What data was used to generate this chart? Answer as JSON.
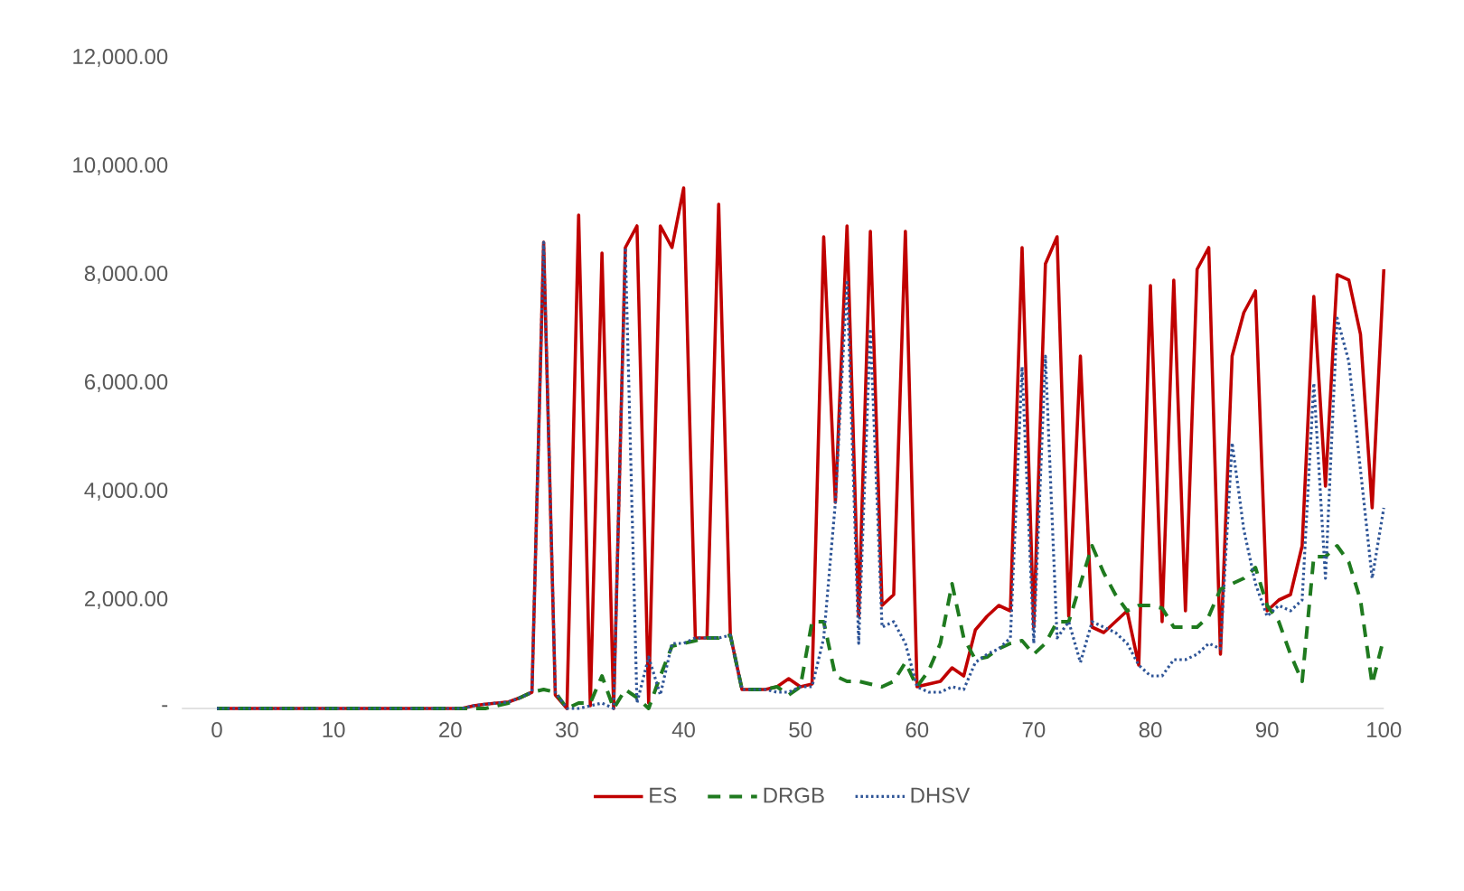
{
  "chart_data": {
    "type": "line",
    "x": [
      0,
      1,
      2,
      3,
      4,
      5,
      6,
      7,
      8,
      9,
      10,
      11,
      12,
      13,
      14,
      15,
      16,
      17,
      18,
      19,
      20,
      21,
      22,
      23,
      24,
      25,
      26,
      27,
      28,
      29,
      30,
      31,
      32,
      33,
      34,
      35,
      36,
      37,
      38,
      39,
      40,
      41,
      42,
      43,
      44,
      45,
      46,
      47,
      48,
      49,
      50,
      51,
      52,
      53,
      54,
      55,
      56,
      57,
      58,
      59,
      60,
      61,
      62,
      63,
      64,
      65,
      66,
      67,
      68,
      69,
      70,
      71,
      72,
      73,
      74,
      75,
      76,
      77,
      78,
      79,
      80,
      81,
      82,
      83,
      84,
      85,
      86,
      87,
      88,
      89,
      90,
      91,
      92,
      93,
      94,
      95,
      96,
      97,
      98,
      99,
      100
    ],
    "series": [
      {
        "name": "ES",
        "color": "#c00000",
        "line_style": "solid",
        "values": [
          0,
          0,
          0,
          0,
          0,
          0,
          0,
          0,
          0,
          0,
          0,
          0,
          0,
          0,
          0,
          0,
          0,
          0,
          0,
          0,
          0,
          0,
          50,
          80,
          100,
          120,
          200,
          300,
          8600,
          250,
          0,
          9100,
          50,
          8400,
          0,
          8500,
          8900,
          100,
          8900,
          8500,
          9600,
          1300,
          1300,
          9300,
          1350,
          350,
          350,
          350,
          400,
          550,
          400,
          450,
          8700,
          3800,
          8900,
          1700,
          8800,
          1900,
          2100,
          8800,
          400,
          450,
          500,
          750,
          600,
          1450,
          1700,
          1900,
          1800,
          8500,
          1500,
          8200,
          8700,
          1700,
          6500,
          1500,
          1400,
          1600,
          1800,
          800,
          7800,
          1600,
          7900,
          1800,
          8100,
          8500,
          1000,
          6500,
          7300,
          7700,
          1800,
          2000,
          2100,
          3000,
          7600,
          4100,
          8000,
          7900,
          6900,
          3700,
          8100
        ]
      },
      {
        "name": "DRGB",
        "color": "#1f7a1f",
        "line_style": "dashed",
        "values": [
          0,
          0,
          0,
          0,
          0,
          0,
          0,
          0,
          0,
          0,
          0,
          0,
          0,
          0,
          0,
          0,
          0,
          0,
          0,
          0,
          0,
          0,
          0,
          0,
          50,
          100,
          200,
          300,
          350,
          300,
          0,
          100,
          100,
          600,
          0,
          350,
          200,
          0,
          600,
          1150,
          1200,
          1250,
          1300,
          1300,
          1350,
          350,
          350,
          350,
          400,
          250,
          400,
          1600,
          1600,
          600,
          500,
          500,
          450,
          400,
          500,
          850,
          400,
          700,
          1200,
          2300,
          1300,
          900,
          950,
          1100,
          1200,
          1250,
          1000,
          1200,
          1600,
          1600,
          2300,
          3000,
          2500,
          2100,
          1800,
          1900,
          1900,
          1850,
          1500,
          1500,
          1500,
          1700,
          2200,
          2300,
          2400,
          2600,
          1900,
          1600,
          1000,
          500,
          2800,
          2800,
          3000,
          2700,
          2000,
          450,
          1300
        ]
      },
      {
        "name": "DHSV",
        "color": "#2f5597",
        "line_style": "dotted",
        "values": [
          0,
          0,
          0,
          0,
          0,
          0,
          0,
          0,
          0,
          0,
          0,
          0,
          0,
          0,
          0,
          0,
          0,
          0,
          0,
          0,
          0,
          0,
          50,
          80,
          100,
          120,
          200,
          300,
          8600,
          300,
          0,
          0,
          50,
          100,
          0,
          8500,
          100,
          950,
          250,
          1200,
          1200,
          1300,
          1300,
          1300,
          1350,
          350,
          350,
          350,
          300,
          300,
          400,
          400,
          1300,
          3800,
          7900,
          1200,
          7000,
          1500,
          1600,
          1200,
          400,
          300,
          300,
          400,
          350,
          850,
          1000,
          1100,
          1300,
          6300,
          1200,
          6500,
          1300,
          1600,
          850,
          1600,
          1500,
          1400,
          1200,
          800,
          600,
          600,
          900,
          900,
          1000,
          1200,
          1100,
          4900,
          3300,
          2300,
          1700,
          1900,
          1800,
          2000,
          6000,
          2400,
          7200,
          6400,
          4400,
          2400,
          3700
        ]
      }
    ],
    "xlim": [
      -3,
      100
    ],
    "ylim": [
      0,
      12000
    ],
    "xticks": [
      0,
      10,
      20,
      30,
      40,
      50,
      60,
      70,
      80,
      90,
      100
    ],
    "yticks": [
      {
        "value": 0,
        "label": "-"
      },
      {
        "value": 2000,
        "label": "2,000.00"
      },
      {
        "value": 4000,
        "label": "4,000.00"
      },
      {
        "value": 6000,
        "label": "6,000.00"
      },
      {
        "value": 8000,
        "label": "8,000.00"
      },
      {
        "value": 10000,
        "label": "10,000.00"
      },
      {
        "value": 12000,
        "label": "12,000.00"
      }
    ],
    "legend": "bottom"
  }
}
